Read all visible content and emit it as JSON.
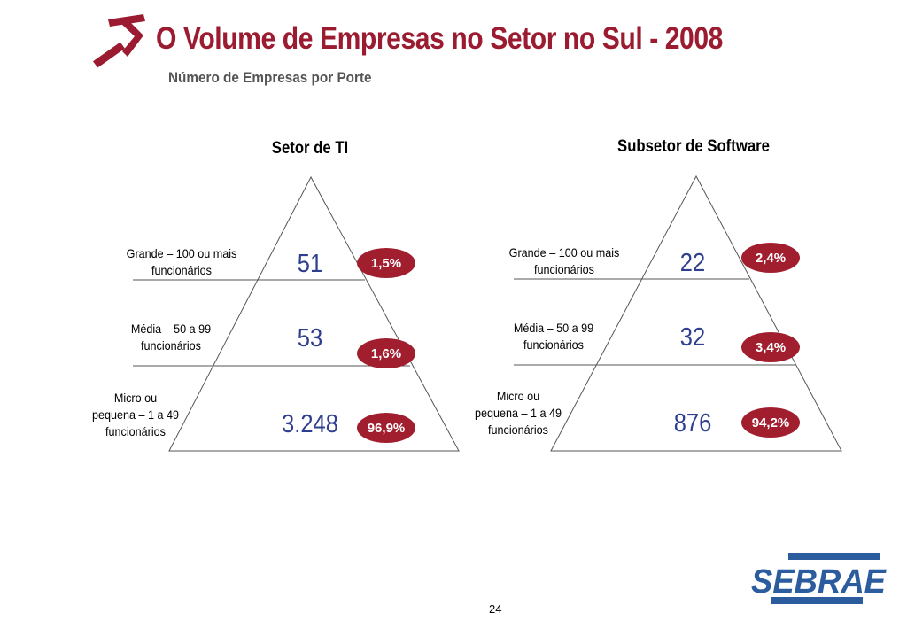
{
  "header": {
    "title": "O Volume de Empresas no Setor no Sul - 2008",
    "subtitle": "Número de Empresas por Porte"
  },
  "pyramids": [
    {
      "title": "Setor de TI",
      "tiers": [
        {
          "label_line1": "Grande – 100 ou mais",
          "label_line2": "funcionários",
          "label_line3": "",
          "count": "51",
          "percent": "1,5%"
        },
        {
          "label_line1": "Média – 50 a 99",
          "label_line2": "funcionários",
          "label_line3": "",
          "count": "53",
          "percent": "1,6%"
        },
        {
          "label_line1": "Micro ou",
          "label_line2": "pequena – 1 a 49",
          "label_line3": "funcionários",
          "count": "3.248",
          "percent": "96,9%"
        }
      ]
    },
    {
      "title": "Subsetor de Software",
      "tiers": [
        {
          "label_line1": "Grande – 100 ou mais",
          "label_line2": "funcionários",
          "label_line3": "",
          "count": "22",
          "percent": "2,4%"
        },
        {
          "label_line1": "Média – 50 a 99",
          "label_line2": "funcionários",
          "label_line3": "",
          "count": "32",
          "percent": "3,4%"
        },
        {
          "label_line1": "Micro ou",
          "label_line2": "pequena – 1 a 49",
          "label_line3": "funcionários",
          "count": "876",
          "percent": "94,2%"
        }
      ]
    }
  ],
  "footer": {
    "page_number": "24",
    "logo_text": "SEBRAE"
  },
  "colors": {
    "title": "#9b1b30",
    "badge": "#a11e2f",
    "count": "#2f3f8f",
    "logo": "#2b5c9e"
  }
}
